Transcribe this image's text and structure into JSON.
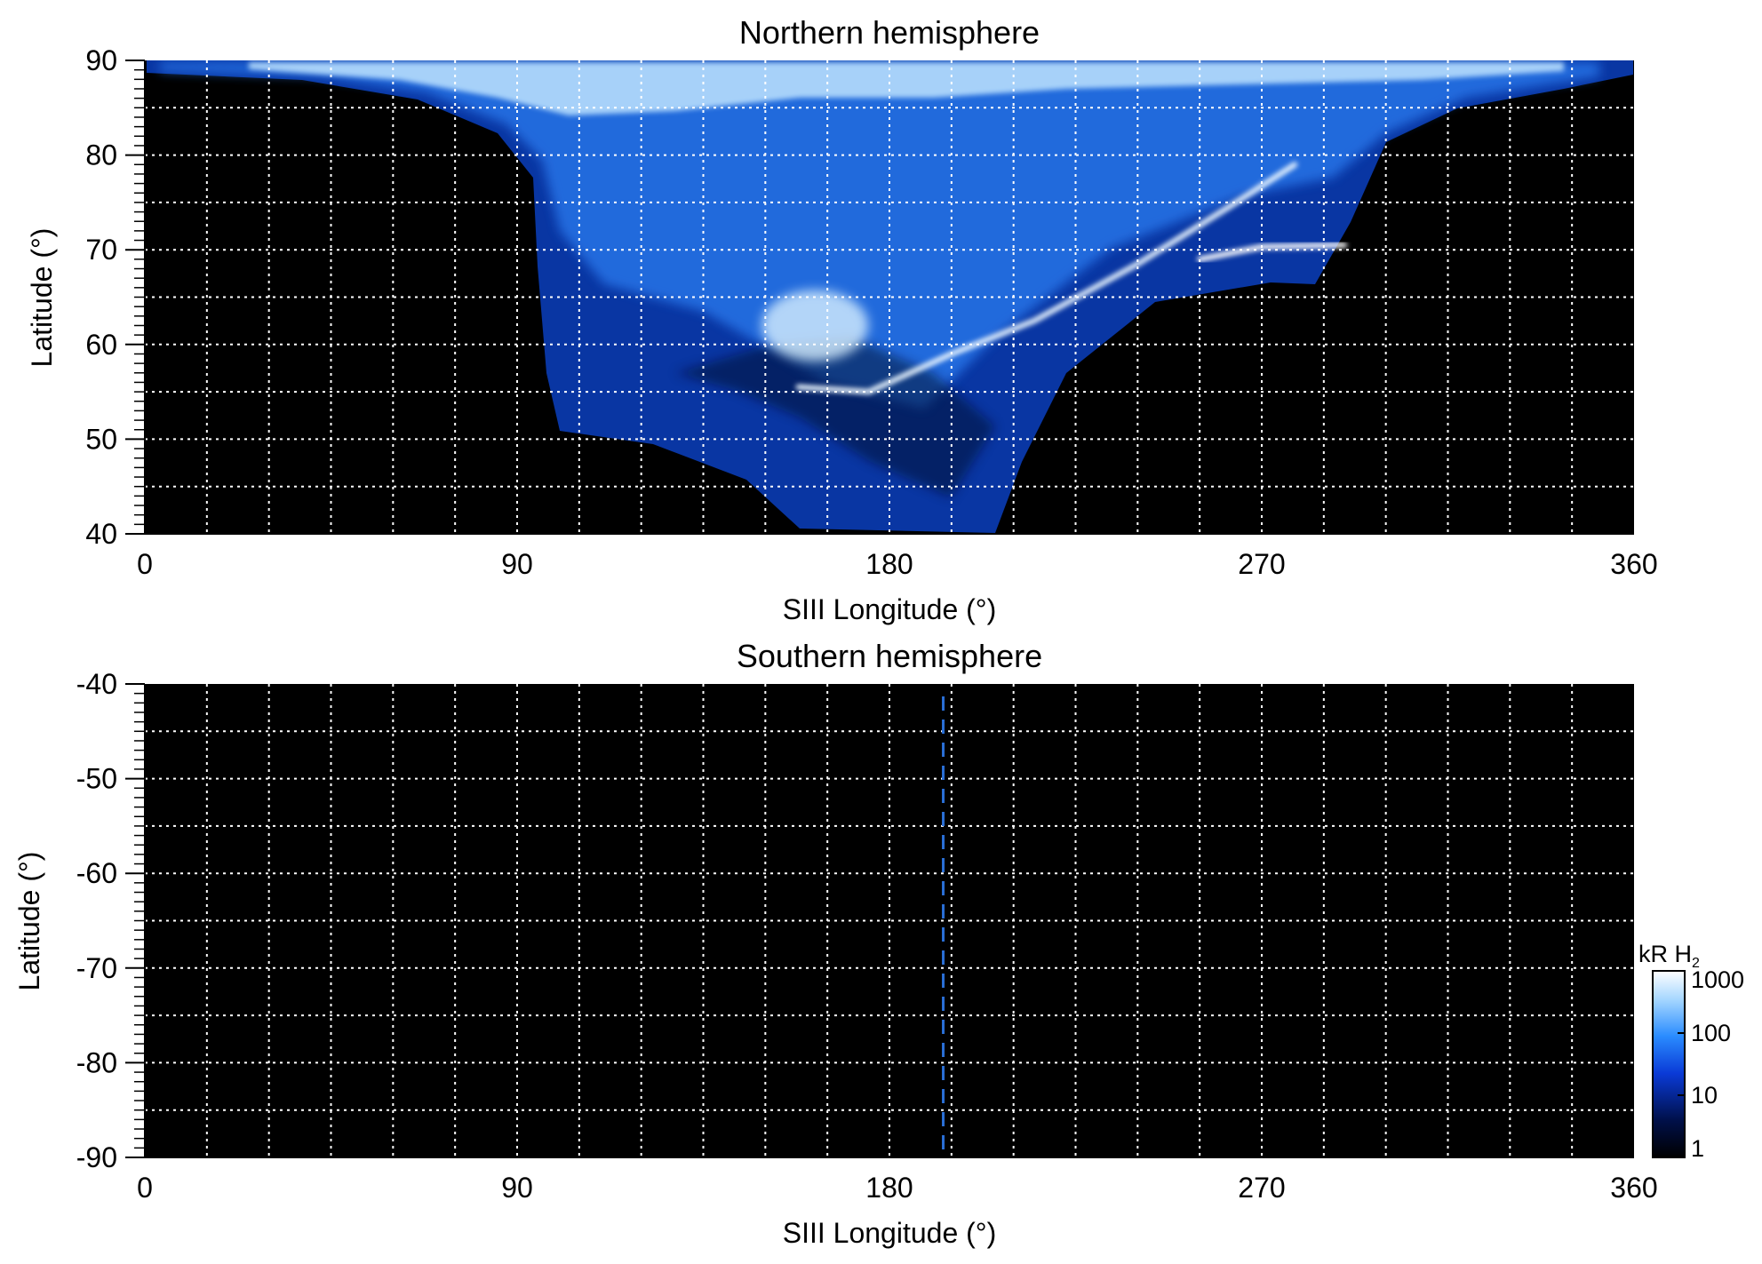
{
  "chart_data": [
    {
      "type": "heatmap",
      "title": "Northern hemisphere",
      "xlabel": "SIII Longitude (°)",
      "ylabel": "Latitude (°)",
      "xlim": [
        0,
        360
      ],
      "ylim": [
        40,
        90
      ],
      "xticks": [
        "0",
        "90",
        "180",
        "270",
        "360"
      ],
      "yticks": [
        "40",
        "50",
        "60",
        "70",
        "80",
        "90"
      ],
      "grid": true,
      "grid_spacing": {
        "x": 15,
        "y": 5
      },
      "features": {
        "emission_region_longitude": [
          95,
          290
        ],
        "main_oval": [
          {
            "lon": 158,
            "lat": 55.5
          },
          {
            "lon": 175,
            "lat": 55
          },
          {
            "lon": 195,
            "lat": 59
          },
          {
            "lon": 215,
            "lat": 62.5
          },
          {
            "lon": 240,
            "lat": 68.5
          },
          {
            "lon": 262,
            "lat": 74.5
          },
          {
            "lon": 278,
            "lat": 79
          }
        ],
        "secondary_arc": [
          {
            "lon": 255,
            "lat": 69
          },
          {
            "lon": 270,
            "lat": 70.3
          },
          {
            "lon": 290,
            "lat": 70.5
          }
        ],
        "bright_spot": {
          "lon": 162,
          "lat": 62
        }
      }
    },
    {
      "type": "heatmap",
      "title": "Southern hemisphere",
      "xlabel": "SIII Longitude (°)",
      "ylabel": "Latitude (°)",
      "xlim": [
        0,
        360
      ],
      "ylim": [
        -90,
        -40
      ],
      "xticks": [
        "0",
        "90",
        "180",
        "270",
        "360"
      ],
      "yticks": [
        "-40",
        "-50",
        "-60",
        "-70",
        "-80",
        "-90"
      ],
      "grid": true,
      "grid_spacing": {
        "x": 15,
        "y": 5
      },
      "marker_longitude": 193
    }
  ],
  "colorbar": {
    "label": "kR H",
    "label_subscript": "2",
    "ticks": [
      "1000",
      "100",
      "10",
      "1"
    ],
    "scale": "log",
    "range": [
      1,
      1000
    ],
    "colors": [
      "#000000",
      "#00104a",
      "#0a3ad6",
      "#2a8cff",
      "#a8d8ff",
      "#ffffff"
    ]
  },
  "colors": {
    "background": "#000000",
    "grid": "#ffffff",
    "marker": "#2a6fd6"
  }
}
